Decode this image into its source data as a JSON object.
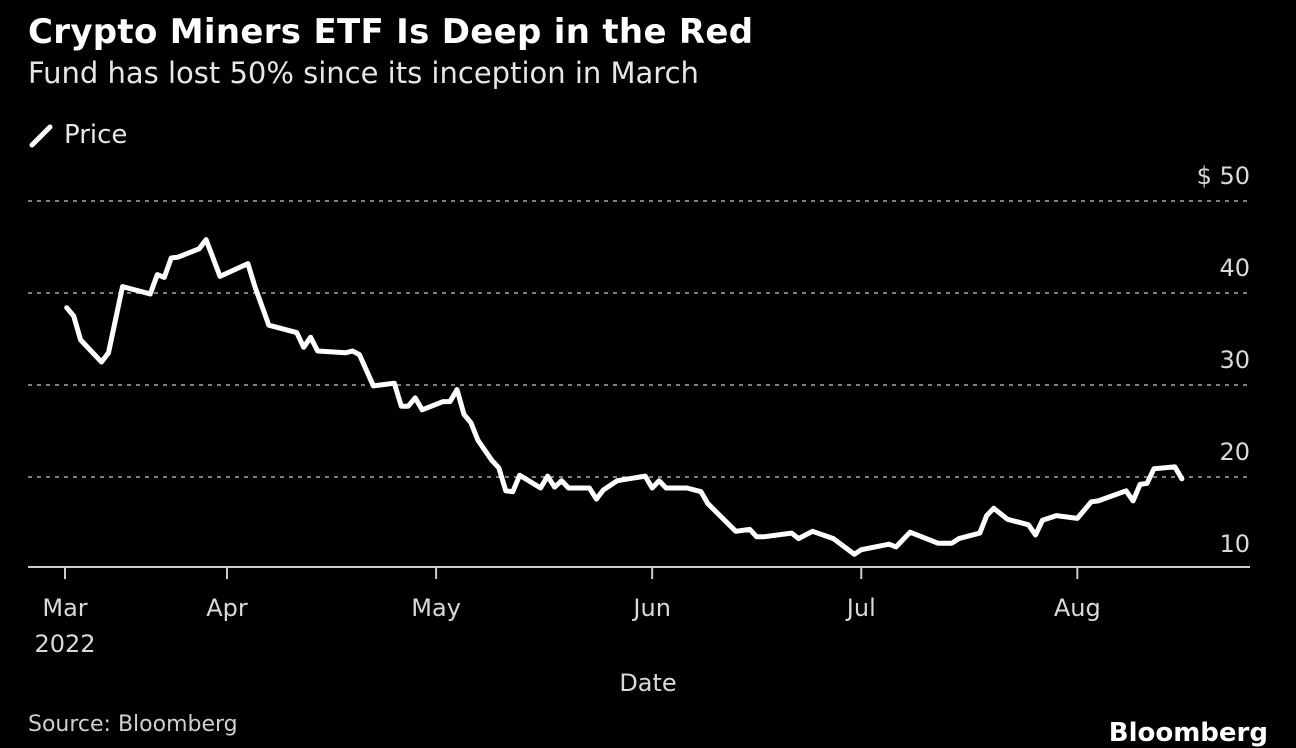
{
  "title": "Crypto Miners ETF Is Deep in the Red",
  "subtitle": "Fund has lost 50% since its inception in March",
  "legend": {
    "label": "Price",
    "icon": "slash-line-icon"
  },
  "source": "Source: Bloomberg",
  "logo": "Bloomberg",
  "colors": {
    "background": "#000000",
    "line": "#ffffff",
    "grid": "#7f7f7f",
    "axis": "#cccccc"
  },
  "chart_data": {
    "type": "line",
    "title": "Crypto Miners ETF Is Deep in the Red",
    "subtitle": "Fund has lost 50% since its inception in March",
    "xlabel": "Date",
    "ylabel": "",
    "ylim": [
      10,
      50
    ],
    "y_ticks": [
      {
        "value": 50,
        "label": "$ 50"
      },
      {
        "value": 40,
        "label": "40"
      },
      {
        "value": 30,
        "label": "30"
      },
      {
        "value": 20,
        "label": "20"
      },
      {
        "value": 10,
        "label": "10"
      }
    ],
    "x_ticks": [
      {
        "date": "2022-03-09",
        "label": "Mar",
        "sublabel": "2022"
      },
      {
        "date": "2022-04-01",
        "label": "Apr"
      },
      {
        "date": "2022-05-01",
        "label": "May"
      },
      {
        "date": "2022-06-01",
        "label": "Jun"
      },
      {
        "date": "2022-07-01",
        "label": "Jul"
      },
      {
        "date": "2022-08-01",
        "label": "Aug"
      }
    ],
    "grid": "horizontal dotted",
    "legend_position": "top-left",
    "series": [
      {
        "name": "Price",
        "points": [
          [
            "2022-03-09",
            38.4
          ],
          [
            "2022-03-10",
            37.5
          ],
          [
            "2022-03-11",
            34.9
          ],
          [
            "2022-03-14",
            32.5
          ],
          [
            "2022-03-15",
            33.5
          ],
          [
            "2022-03-17",
            40.7
          ],
          [
            "2022-03-21",
            39.9
          ],
          [
            "2022-03-22",
            42.0
          ],
          [
            "2022-03-23",
            41.7
          ],
          [
            "2022-03-24",
            43.8
          ],
          [
            "2022-03-25",
            43.9
          ],
          [
            "2022-03-28",
            44.8
          ],
          [
            "2022-03-29",
            45.8
          ],
          [
            "2022-03-31",
            41.8
          ],
          [
            "2022-04-04",
            43.2
          ],
          [
            "2022-04-05",
            40.7
          ],
          [
            "2022-04-07",
            36.5
          ],
          [
            "2022-04-11",
            35.7
          ],
          [
            "2022-04-12",
            34.1
          ],
          [
            "2022-04-13",
            35.2
          ],
          [
            "2022-04-14",
            33.7
          ],
          [
            "2022-04-18",
            33.5
          ],
          [
            "2022-04-19",
            33.7
          ],
          [
            "2022-04-20",
            33.3
          ],
          [
            "2022-04-22",
            29.9
          ],
          [
            "2022-04-25",
            30.2
          ],
          [
            "2022-04-26",
            27.7
          ],
          [
            "2022-04-27",
            27.7
          ],
          [
            "2022-04-28",
            28.6
          ],
          [
            "2022-04-29",
            27.3
          ],
          [
            "2022-05-02",
            28.2
          ],
          [
            "2022-05-03",
            28.2
          ],
          [
            "2022-05-04",
            29.5
          ],
          [
            "2022-05-05",
            26.8
          ],
          [
            "2022-05-06",
            25.9
          ],
          [
            "2022-05-07",
            24.0
          ],
          [
            "2022-05-09",
            21.8
          ],
          [
            "2022-05-10",
            21.0
          ],
          [
            "2022-05-11",
            18.5
          ],
          [
            "2022-05-12",
            18.4
          ],
          [
            "2022-05-13",
            20.2
          ],
          [
            "2022-05-16",
            18.8
          ],
          [
            "2022-05-17",
            20.1
          ],
          [
            "2022-05-18",
            18.9
          ],
          [
            "2022-05-19",
            19.6
          ],
          [
            "2022-05-20",
            18.8
          ],
          [
            "2022-05-23",
            18.8
          ],
          [
            "2022-05-24",
            17.6
          ],
          [
            "2022-05-25",
            18.6
          ],
          [
            "2022-05-27",
            19.6
          ],
          [
            "2022-05-31",
            20.1
          ],
          [
            "2022-06-01",
            18.8
          ],
          [
            "2022-06-02",
            19.6
          ],
          [
            "2022-06-03",
            18.8
          ],
          [
            "2022-06-06",
            18.8
          ],
          [
            "2022-06-08",
            18.4
          ],
          [
            "2022-06-09",
            17.1
          ],
          [
            "2022-06-13",
            14.1
          ],
          [
            "2022-06-15",
            14.3
          ],
          [
            "2022-06-16",
            13.5
          ],
          [
            "2022-06-17",
            13.5
          ],
          [
            "2022-06-21",
            13.9
          ],
          [
            "2022-06-22",
            13.3
          ],
          [
            "2022-06-24",
            14.1
          ],
          [
            "2022-06-27",
            13.3
          ],
          [
            "2022-06-30",
            11.6
          ],
          [
            "2022-07-01",
            12.1
          ],
          [
            "2022-07-05",
            12.7
          ],
          [
            "2022-07-06",
            12.4
          ],
          [
            "2022-07-08",
            14.0
          ],
          [
            "2022-07-12",
            12.8
          ],
          [
            "2022-07-14",
            12.8
          ],
          [
            "2022-07-15",
            13.3
          ],
          [
            "2022-07-18",
            13.9
          ],
          [
            "2022-07-19",
            15.8
          ],
          [
            "2022-07-20",
            16.6
          ],
          [
            "2022-07-22",
            15.4
          ],
          [
            "2022-07-25",
            14.8
          ],
          [
            "2022-07-26",
            13.7
          ],
          [
            "2022-07-27",
            15.3
          ],
          [
            "2022-07-29",
            15.8
          ],
          [
            "2022-08-01",
            15.5
          ],
          [
            "2022-08-03",
            17.3
          ],
          [
            "2022-08-04",
            17.4
          ],
          [
            "2022-08-08",
            18.5
          ],
          [
            "2022-08-09",
            17.4
          ],
          [
            "2022-08-10",
            19.2
          ],
          [
            "2022-08-11",
            19.3
          ],
          [
            "2022-08-12",
            20.9
          ],
          [
            "2022-08-15",
            21.1
          ],
          [
            "2022-08-16",
            19.8
          ]
        ]
      }
    ]
  }
}
